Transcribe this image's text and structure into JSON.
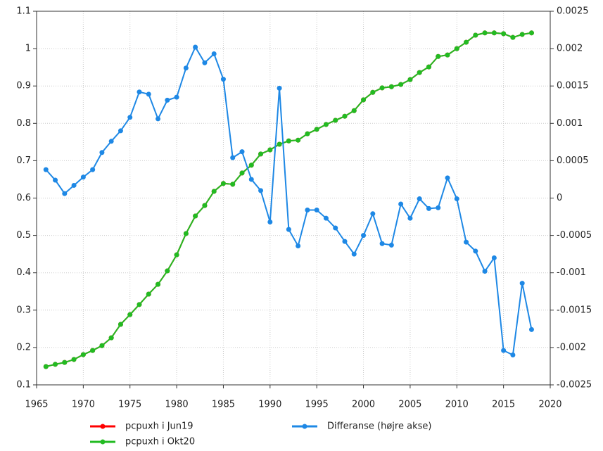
{
  "chart_data": {
    "type": "line",
    "x": [
      1966,
      1967,
      1968,
      1969,
      1970,
      1971,
      1972,
      1973,
      1974,
      1975,
      1976,
      1977,
      1978,
      1979,
      1980,
      1981,
      1982,
      1983,
      1984,
      1985,
      1986,
      1987,
      1988,
      1989,
      1990,
      1991,
      1992,
      1993,
      1994,
      1995,
      1996,
      1997,
      1998,
      1999,
      2000,
      2001,
      2002,
      2003,
      2004,
      2005,
      2006,
      2007,
      2008,
      2009,
      2010,
      2011,
      2012,
      2013,
      2014,
      2015,
      2016,
      2017,
      2018
    ],
    "series": [
      {
        "name": "pcpuxh i Jun19",
        "color": "#ff0000",
        "values": [
          0.149,
          0.155,
          0.16,
          0.168,
          0.181,
          0.192,
          0.205,
          0.226,
          0.262,
          0.288,
          0.315,
          0.343,
          0.369,
          0.405,
          0.448,
          0.505,
          0.552,
          0.58,
          0.618,
          0.639,
          0.637,
          0.667,
          0.688,
          0.718,
          0.729,
          0.744,
          0.753,
          0.755,
          0.772,
          0.784,
          0.797,
          0.808,
          0.819,
          0.834,
          0.863,
          0.883,
          0.895,
          0.898,
          0.904,
          0.917,
          0.936,
          0.951,
          0.979,
          0.983,
          1.0,
          1.017,
          1.036,
          1.042,
          1.042,
          1.04,
          1.03,
          1.038,
          1.042
        ]
      },
      {
        "name": "pcpuxh i Okt20",
        "color": "#22bb22",
        "values": [
          0.149,
          0.155,
          0.16,
          0.168,
          0.181,
          0.192,
          0.205,
          0.226,
          0.262,
          0.288,
          0.315,
          0.343,
          0.369,
          0.405,
          0.448,
          0.505,
          0.552,
          0.58,
          0.618,
          0.639,
          0.637,
          0.667,
          0.688,
          0.718,
          0.729,
          0.744,
          0.753,
          0.755,
          0.772,
          0.784,
          0.797,
          0.808,
          0.819,
          0.834,
          0.863,
          0.883,
          0.895,
          0.898,
          0.904,
          0.917,
          0.936,
          0.951,
          0.979,
          0.983,
          1.0,
          1.017,
          1.036,
          1.042,
          1.042,
          1.04,
          1.03,
          1.038,
          1.042
        ]
      },
      {
        "name": "Differanse (højre akse)",
        "color": "#1e88e5",
        "axis": "y2",
        "values": [
          0.00038,
          0.00024,
          6e-05,
          0.00017,
          0.00028,
          0.00038,
          0.00061,
          0.00076,
          0.0009,
          0.00108,
          0.00142,
          0.00139,
          0.00106,
          0.00131,
          0.00135,
          0.00174,
          0.00202,
          0.00181,
          0.00193,
          0.00159,
          0.00054,
          0.00062,
          0.00025,
          0.0001,
          -0.00032,
          0.00147,
          -0.00042,
          -0.00064,
          -0.00016,
          -0.00016,
          -0.00027,
          -0.0004,
          -0.00058,
          -0.00075,
          -0.0005,
          -0.00021,
          -0.00061,
          -0.00063,
          -8e-05,
          -0.00027,
          -1e-05,
          -0.00014,
          -0.00013,
          0.00027,
          -1e-05,
          -0.00059,
          -0.00071,
          -0.00098,
          -0.0008,
          -0.00204,
          -0.0021,
          -0.00114,
          -0.00176
        ]
      }
    ],
    "xlim": [
      1965,
      2020
    ],
    "xticks": [
      1965,
      1970,
      1975,
      1980,
      1985,
      1990,
      1995,
      2000,
      2005,
      2010,
      2015,
      2020
    ],
    "ylim": [
      0.1,
      1.1
    ],
    "yticks": [
      0.1,
      0.2,
      0.3,
      0.4,
      0.5,
      0.6,
      0.7,
      0.8,
      0.9,
      1,
      1.1
    ],
    "y2lim": [
      -0.0025,
      0.0025
    ],
    "y2ticks": [
      -0.0025,
      -0.002,
      -0.0015,
      -0.001,
      -0.0005,
      0,
      0.0005,
      0.001,
      0.0015,
      0.002,
      0.0025
    ],
    "grid": true,
    "legend": "bottom"
  }
}
